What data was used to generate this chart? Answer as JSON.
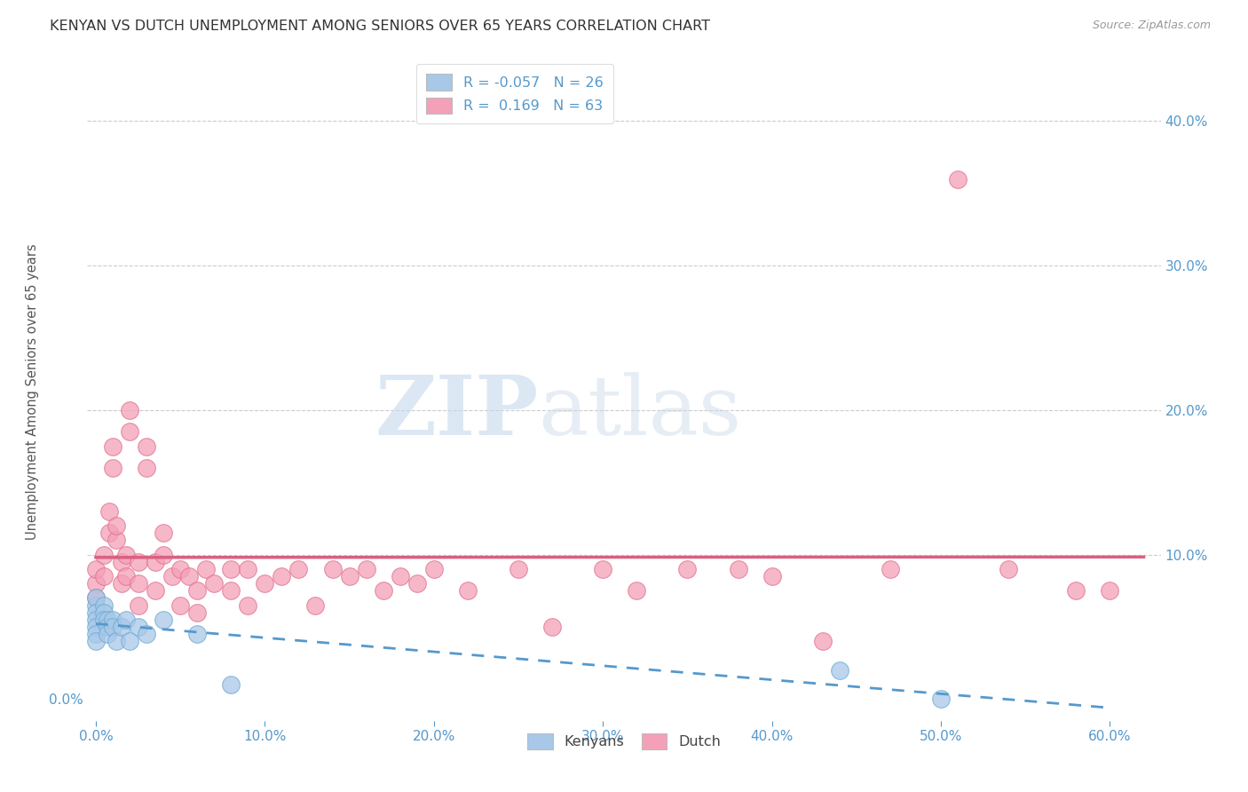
{
  "title": "KENYAN VS DUTCH UNEMPLOYMENT AMONG SENIORS OVER 65 YEARS CORRELATION CHART",
  "source": "Source: ZipAtlas.com",
  "ylabel": "Unemployment Among Seniors over 65 years",
  "xlim": [
    -0.005,
    0.63
  ],
  "ylim": [
    -0.015,
    0.44
  ],
  "x_tick_vals": [
    0.0,
    0.1,
    0.2,
    0.3,
    0.4,
    0.5,
    0.6
  ],
  "x_tick_labels": [
    "0.0%",
    "10.0%",
    "20.0%",
    "30.0%",
    "40.0%",
    "50.0%",
    "60.0%"
  ],
  "y_tick_vals_left": [
    0.0
  ],
  "y_tick_labels_left": [
    "0.0%"
  ],
  "right_ytick_vals": [
    0.1,
    0.2,
    0.3,
    0.4
  ],
  "right_ytick_labels": [
    "10.0%",
    "20.0%",
    "30.0%",
    "40.0%"
  ],
  "grid_ytick_vals": [
    0.1,
    0.2,
    0.3,
    0.4
  ],
  "kenyan_R": -0.057,
  "kenyan_N": 26,
  "dutch_R": 0.169,
  "dutch_N": 63,
  "kenyan_color": "#a8c8e8",
  "dutch_color": "#f4a0b8",
  "kenyan_edge_color": "#6aaad4",
  "dutch_edge_color": "#e07090",
  "kenyan_line_color": "#5599cc",
  "dutch_line_color": "#d96080",
  "legend_label_1": "Kenyans",
  "legend_label_2": "Dutch",
  "kenyan_x": [
    0.0,
    0.0,
    0.0,
    0.0,
    0.0,
    0.0,
    0.0,
    0.005,
    0.005,
    0.005,
    0.007,
    0.007,
    0.007,
    0.01,
    0.01,
    0.012,
    0.015,
    0.018,
    0.02,
    0.025,
    0.03,
    0.04,
    0.06,
    0.08,
    0.44,
    0.5
  ],
  "kenyan_y": [
    0.065,
    0.07,
    0.06,
    0.055,
    0.05,
    0.045,
    0.04,
    0.065,
    0.06,
    0.055,
    0.055,
    0.05,
    0.045,
    0.055,
    0.05,
    0.04,
    0.05,
    0.055,
    0.04,
    0.05,
    0.045,
    0.055,
    0.045,
    0.01,
    0.02,
    0.0
  ],
  "dutch_x": [
    0.0,
    0.0,
    0.0,
    0.005,
    0.005,
    0.008,
    0.008,
    0.01,
    0.01,
    0.012,
    0.012,
    0.015,
    0.015,
    0.018,
    0.018,
    0.02,
    0.02,
    0.025,
    0.025,
    0.025,
    0.03,
    0.03,
    0.035,
    0.035,
    0.04,
    0.04,
    0.045,
    0.05,
    0.05,
    0.055,
    0.06,
    0.06,
    0.065,
    0.07,
    0.08,
    0.08,
    0.09,
    0.09,
    0.1,
    0.11,
    0.12,
    0.13,
    0.14,
    0.15,
    0.16,
    0.17,
    0.18,
    0.19,
    0.2,
    0.22,
    0.25,
    0.27,
    0.3,
    0.32,
    0.35,
    0.38,
    0.4,
    0.43,
    0.47,
    0.51,
    0.54,
    0.58,
    0.6
  ],
  "dutch_y": [
    0.08,
    0.07,
    0.09,
    0.1,
    0.085,
    0.115,
    0.13,
    0.16,
    0.175,
    0.11,
    0.12,
    0.08,
    0.095,
    0.1,
    0.085,
    0.2,
    0.185,
    0.095,
    0.065,
    0.08,
    0.16,
    0.175,
    0.095,
    0.075,
    0.115,
    0.1,
    0.085,
    0.09,
    0.065,
    0.085,
    0.075,
    0.06,
    0.09,
    0.08,
    0.09,
    0.075,
    0.09,
    0.065,
    0.08,
    0.085,
    0.09,
    0.065,
    0.09,
    0.085,
    0.09,
    0.075,
    0.085,
    0.08,
    0.09,
    0.075,
    0.09,
    0.05,
    0.09,
    0.075,
    0.09,
    0.09,
    0.085,
    0.04,
    0.09,
    0.36,
    0.09,
    0.075,
    0.075
  ],
  "watermark_zip": "ZIP",
  "watermark_atlas": "atlas",
  "background_color": "#ffffff",
  "grid_color": "#cccccc",
  "title_color": "#333333",
  "axis_color": "#5599cc",
  "title_fontsize": 11.5,
  "source_fontsize": 9,
  "tick_fontsize": 11
}
